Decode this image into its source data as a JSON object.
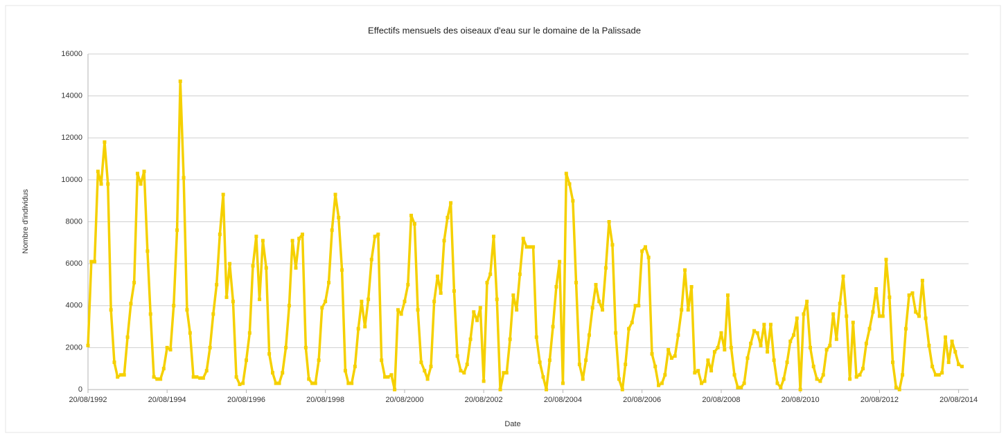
{
  "chart_data": {
    "type": "line",
    "title": "Effectifs mensuels des oiseaux d'eau sur le domaine de la Palissade",
    "x_label": "Date",
    "y_label": "Nombre d'individus",
    "x": [
      "20/08/1992",
      "20/09/1992",
      "20/10/1992",
      "20/11/1992",
      "20/12/1992",
      "20/01/1993",
      "20/02/1993",
      "20/03/1993",
      "20/04/1993",
      "20/05/1993",
      "20/06/1993",
      "20/07/1993",
      "20/08/1993",
      "20/09/1993",
      "20/10/1993",
      "20/11/1993",
      "20/12/1993",
      "20/01/1994",
      "20/02/1994",
      "20/03/1994",
      "20/04/1994",
      "20/05/1994",
      "20/06/1994",
      "20/07/1994",
      "20/08/1994",
      "20/09/1994",
      "20/10/1994",
      "20/11/1994",
      "20/12/1994",
      "20/01/1995",
      "20/02/1995",
      "20/03/1995",
      "20/04/1995",
      "20/05/1995",
      "20/06/1995",
      "20/07/1995",
      "20/08/1995",
      "20/09/1995",
      "20/10/1995",
      "20/11/1995",
      "20/12/1995",
      "20/01/1996",
      "20/02/1996",
      "20/03/1996",
      "20/04/1996",
      "20/05/1996",
      "20/06/1996",
      "20/07/1996",
      "20/08/1996",
      "20/09/1996",
      "20/10/1996",
      "20/11/1996",
      "20/12/1996",
      "20/01/1997",
      "20/02/1997",
      "20/03/1997",
      "20/04/1997",
      "20/05/1997",
      "20/06/1997",
      "20/07/1997",
      "20/08/1997",
      "20/09/1997",
      "20/10/1997",
      "20/11/1997",
      "20/12/1997",
      "20/01/1998",
      "20/02/1998",
      "20/03/1998",
      "20/04/1998",
      "20/05/1998",
      "20/06/1998",
      "20/07/1998",
      "20/08/1998",
      "20/09/1998",
      "20/10/1998",
      "20/11/1998",
      "20/12/1998",
      "20/01/1999",
      "20/02/1999",
      "20/03/1999",
      "20/04/1999",
      "20/05/1999",
      "20/06/1999",
      "20/07/1999",
      "20/08/1999",
      "20/09/1999",
      "20/10/1999",
      "20/11/1999",
      "20/12/1999",
      "20/01/2000",
      "20/02/2000",
      "20/03/2000",
      "20/04/2000",
      "20/05/2000",
      "20/06/2000",
      "20/07/2000",
      "20/08/2000",
      "20/09/2000",
      "20/10/2000",
      "20/11/2000",
      "20/12/2000",
      "20/01/2001",
      "20/02/2001",
      "20/03/2001",
      "20/04/2001",
      "20/05/2001",
      "20/06/2001",
      "20/07/2001",
      "20/08/2001",
      "20/09/2001",
      "20/10/2001",
      "20/11/2001",
      "20/12/2001",
      "20/01/2002",
      "20/02/2002",
      "20/03/2002",
      "20/04/2002",
      "20/05/2002",
      "20/06/2002",
      "20/07/2002",
      "20/08/2002",
      "20/09/2002",
      "20/10/2002",
      "20/11/2002",
      "20/12/2002",
      "20/01/2003",
      "20/02/2003",
      "20/03/2003",
      "20/04/2003",
      "20/05/2003",
      "20/06/2003",
      "20/07/2003",
      "20/08/2003",
      "20/09/2003",
      "20/10/2003",
      "20/11/2003",
      "20/12/2003",
      "20/01/2004",
      "20/02/2004",
      "20/03/2004",
      "20/04/2004",
      "20/05/2004",
      "20/06/2004",
      "20/07/2004",
      "20/08/2004",
      "20/09/2004",
      "20/10/2004",
      "20/11/2004",
      "20/12/2004",
      "20/01/2005",
      "20/02/2005",
      "20/03/2005",
      "20/04/2005",
      "20/05/2005",
      "20/06/2005",
      "20/07/2005",
      "20/08/2005",
      "20/09/2005",
      "20/10/2005",
      "20/11/2005",
      "20/12/2005",
      "20/01/2006",
      "20/02/2006",
      "20/03/2006",
      "20/04/2006",
      "20/05/2006",
      "20/06/2006",
      "20/07/2006",
      "20/08/2006",
      "20/09/2006",
      "20/10/2006",
      "20/11/2006",
      "20/12/2006",
      "20/01/2007",
      "20/02/2007",
      "20/03/2007",
      "20/04/2007",
      "20/05/2007",
      "20/06/2007",
      "20/07/2007",
      "20/08/2007",
      "20/09/2007",
      "20/10/2007",
      "20/11/2007",
      "20/12/2007",
      "20/01/2008",
      "20/02/2008",
      "20/03/2008",
      "20/04/2008",
      "20/05/2008",
      "20/06/2008",
      "20/07/2008",
      "20/08/2008",
      "20/09/2008",
      "20/10/2008",
      "20/11/2008",
      "20/12/2008",
      "20/01/2009",
      "20/02/2009",
      "20/03/2009",
      "20/04/2009",
      "20/05/2009",
      "20/06/2009",
      "20/07/2009",
      "20/08/2009",
      "20/09/2009",
      "20/10/2009",
      "20/11/2009",
      "20/12/2009",
      "20/01/2010",
      "20/02/2010",
      "20/03/2010",
      "20/04/2010",
      "20/05/2010",
      "20/06/2010",
      "20/07/2010",
      "20/08/2010",
      "20/09/2010",
      "20/10/2010",
      "20/11/2010",
      "20/12/2010",
      "20/01/2011",
      "20/02/2011",
      "20/03/2011",
      "20/04/2011",
      "20/05/2011",
      "20/06/2011",
      "20/07/2011",
      "20/08/2011",
      "20/09/2011",
      "20/10/2011",
      "20/11/2011",
      "20/12/2011",
      "20/01/2012",
      "20/02/2012",
      "20/03/2012",
      "20/04/2012",
      "20/05/2012",
      "20/06/2012",
      "20/07/2012",
      "20/08/2012",
      "20/09/2012",
      "20/10/2012",
      "20/11/2012",
      "20/12/2012",
      "20/01/2013",
      "20/02/2013",
      "20/03/2013",
      "20/04/2013",
      "20/05/2013",
      "20/06/2013",
      "20/07/2013",
      "20/08/2013",
      "20/09/2013",
      "20/10/2013",
      "20/11/2013",
      "20/12/2013",
      "20/01/2014",
      "20/02/2014",
      "20/03/2014",
      "20/04/2014",
      "20/05/2014",
      "20/06/2014",
      "20/07/2014",
      "20/08/2014",
      "20/09/2014"
    ],
    "series": [
      {
        "name": "Nombre d'individus",
        "color": "#f5d000",
        "values": [
          2100,
          6100,
          6100,
          10400,
          9800,
          11800,
          9800,
          3800,
          1300,
          600,
          700,
          700,
          2500,
          4100,
          5100,
          10300,
          9800,
          10400,
          6600,
          3600,
          600,
          500,
          500,
          1000,
          2000,
          1900,
          4000,
          7600,
          14700,
          10100,
          3800,
          2700,
          600,
          600,
          550,
          550,
          900,
          2000,
          3600,
          5000,
          7400,
          9300,
          4400,
          6000,
          4200,
          600,
          250,
          300,
          1400,
          2700,
          5900,
          7300,
          4300,
          7100,
          5800,
          1700,
          800,
          300,
          300,
          800,
          2000,
          4000,
          7100,
          5800,
          7200,
          7400,
          2000,
          500,
          300,
          300,
          1400,
          3900,
          4200,
          5100,
          7600,
          9300,
          8200,
          5700,
          900,
          300,
          300,
          1100,
          2900,
          4200,
          3000,
          4300,
          6200,
          7300,
          7400,
          1400,
          600,
          600,
          700,
          0,
          3800,
          3600,
          4200,
          5000,
          8300,
          7900,
          3800,
          1300,
          900,
          500,
          1100,
          4200,
          5400,
          4600,
          7100,
          8200,
          8900,
          4700,
          1600,
          900,
          800,
          1200,
          2400,
          3700,
          3300,
          3900,
          400,
          5100,
          5500,
          7300,
          4300,
          0,
          800,
          800,
          2400,
          4500,
          3800,
          5500,
          7200,
          6800,
          6800,
          6800,
          2500,
          1300,
          600,
          0,
          1400,
          3000,
          4900,
          6100,
          300,
          10300,
          9800,
          9000,
          5100,
          1200,
          500,
          1400,
          2600,
          3900,
          5000,
          4200,
          3800,
          5800,
          8000,
          6900,
          2700,
          500,
          0,
          1200,
          2900,
          3200,
          4000,
          4000,
          6600,
          6800,
          6300,
          1700,
          1100,
          200,
          300,
          700,
          1900,
          1500,
          1600,
          2600,
          3800,
          5700,
          3800,
          4900,
          800,
          900,
          300,
          400,
          1400,
          900,
          1800,
          2000,
          2700,
          1900,
          4500,
          2000,
          700,
          100,
          100,
          300,
          1500,
          2200,
          2800,
          2700,
          2100,
          3100,
          1800,
          3100,
          1400,
          300,
          100,
          500,
          1300,
          2300,
          2600,
          3400,
          0,
          3600,
          4200,
          2000,
          1100,
          500,
          400,
          700,
          1900,
          2100,
          3600,
          2400,
          4100,
          5400,
          3500,
          500,
          3200,
          600,
          700,
          1000,
          2200,
          2900,
          3700,
          4800,
          3500,
          3500,
          6200,
          4400,
          1300,
          100,
          0,
          700,
          2900,
          4500,
          4600,
          3700,
          3500,
          5200,
          3400,
          2100,
          1100,
          700,
          700,
          800,
          2500,
          1300,
          2300,
          1800,
          1200,
          1100
        ]
      }
    ],
    "xlim": [
      "20/08/1992",
      "20/11/2014"
    ],
    "xticks": [
      "20/08/1992",
      "20/08/1994",
      "20/08/1996",
      "20/08/1998",
      "20/08/2000",
      "20/08/2002",
      "20/08/2004",
      "20/08/2006",
      "20/08/2008",
      "20/08/2010",
      "20/08/2012",
      "20/08/2014"
    ],
    "ylim": [
      0,
      16000
    ],
    "yticks": [
      0,
      2000,
      4000,
      6000,
      8000,
      10000,
      12000,
      14000,
      16000
    ],
    "grid": true
  }
}
